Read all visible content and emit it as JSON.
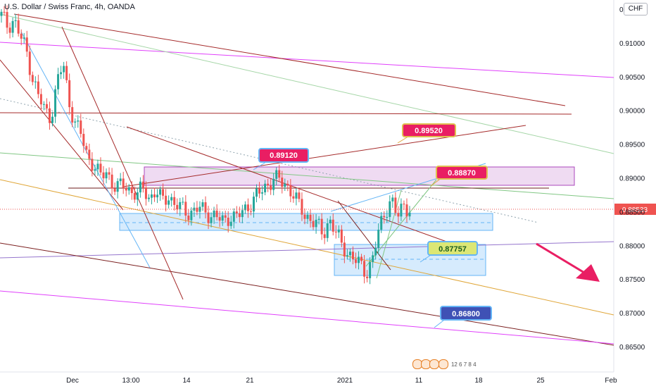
{
  "header": {
    "title": "U.S. Dollar / Swiss Franc, 4h, OANDA",
    "currency": "CHF"
  },
  "events": {
    "label": "12 6 7 8 4"
  },
  "chart_data": {
    "type": "candlestick",
    "symbol": "USDCHF",
    "timeframe": "4h",
    "ylim": [
      0.863,
      0.916
    ],
    "y_ticks": [
      "0.86500",
      "0.87000",
      "0.87500",
      "0.88000",
      "0.88500",
      "0.89000",
      "0.89500",
      "0.90000",
      "0.90500",
      "0.91000",
      "0.91500"
    ],
    "x_ticks": [
      "Dec",
      "13:00",
      "14",
      "21",
      "2021",
      "11",
      "18",
      "25",
      "Feb"
    ],
    "last_price": "0.88533",
    "annotations": [
      {
        "text": "0.89520",
        "style": "red"
      },
      {
        "text": "0.89120",
        "style": "red"
      },
      {
        "text": "0.88870",
        "style": "red"
      },
      {
        "text": "0.87757",
        "style": "green"
      },
      {
        "text": "0.86800",
        "style": "blue"
      }
    ],
    "price_series": [
      0.914,
      0.9125,
      0.9135,
      0.911,
      0.909,
      0.905,
      0.902,
      0.9,
      0.899,
      0.904,
      0.907,
      0.901,
      0.898,
      0.896,
      0.893,
      0.892,
      0.89,
      0.891,
      0.889,
      0.8885,
      0.889,
      0.888,
      0.8875,
      0.8885,
      0.887,
      0.888,
      0.8865,
      0.8875,
      0.886,
      0.8855,
      0.885,
      0.885,
      0.8855,
      0.885,
      0.8845,
      0.884,
      0.8835,
      0.8845,
      0.884,
      0.885,
      0.886,
      0.887,
      0.888,
      0.889,
      0.89,
      0.8895,
      0.889,
      0.888,
      0.886,
      0.8845,
      0.884,
      0.883,
      0.8815,
      0.884,
      0.882,
      0.88,
      0.879,
      0.878,
      0.877,
      0.876,
      0.878,
      0.882,
      0.885,
      0.887,
      0.884,
      0.886,
      0.8855
    ]
  }
}
